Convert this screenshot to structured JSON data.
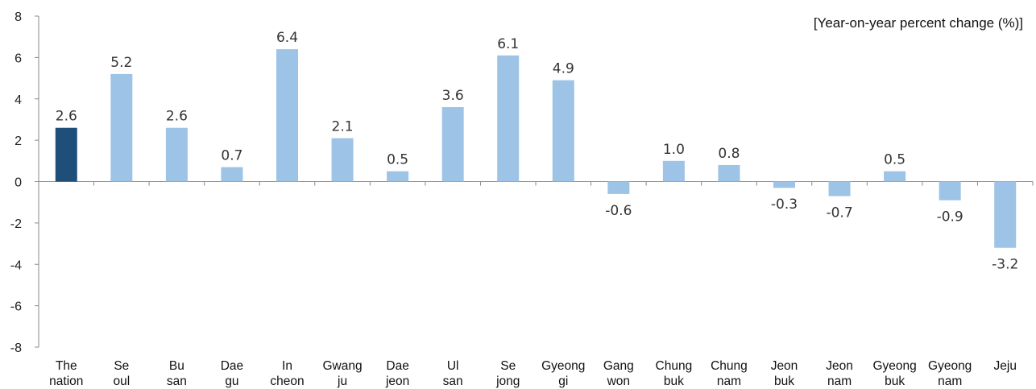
{
  "chart_data": {
    "type": "bar",
    "unit_label": "[Year-on-year percent change (%)]",
    "categories": [
      [
        "The",
        "nation"
      ],
      [
        "Se",
        "oul"
      ],
      [
        "Bu",
        "san"
      ],
      [
        "Dae",
        "gu"
      ],
      [
        "In",
        "cheon"
      ],
      [
        "Gwang",
        "ju"
      ],
      [
        "Dae",
        "jeon"
      ],
      [
        "Ul",
        "san"
      ],
      [
        "Se",
        "jong"
      ],
      [
        "Gyeong",
        "gi"
      ],
      [
        "Gang",
        "won"
      ],
      [
        "Chung",
        "buk"
      ],
      [
        "Chung",
        "nam"
      ],
      [
        "Jeon",
        "buk"
      ],
      [
        "Jeon",
        "nam"
      ],
      [
        "Gyeong",
        "buk"
      ],
      [
        "Gyeong",
        "nam"
      ],
      [
        "Jeju"
      ]
    ],
    "values": [
      2.6,
      5.2,
      2.6,
      0.7,
      6.4,
      2.1,
      0.5,
      3.6,
      6.1,
      4.9,
      -0.6,
      1.0,
      0.8,
      -0.3,
      -0.7,
      0.5,
      -0.9,
      -3.2
    ],
    "value_labels": [
      "2.6",
      "5.2",
      "2.6",
      "0.7",
      "6.4",
      "2.1",
      "0.5",
      "3.6",
      "6.1",
      "4.9",
      "-0.6",
      "1.0",
      "0.8",
      "-0.3",
      "-0.7",
      "0.5",
      "-0.9",
      "-3.2"
    ],
    "highlight_index": 0,
    "colors": {
      "highlight": "#1f4e79",
      "bar": "#9dc3e6",
      "axis": "#888888"
    },
    "ylim": [
      -8,
      8
    ],
    "y_ticks": [
      "8",
      "6",
      "4",
      "2",
      "0",
      "-2",
      "-4",
      "-6",
      "-8"
    ],
    "grid": false
  }
}
